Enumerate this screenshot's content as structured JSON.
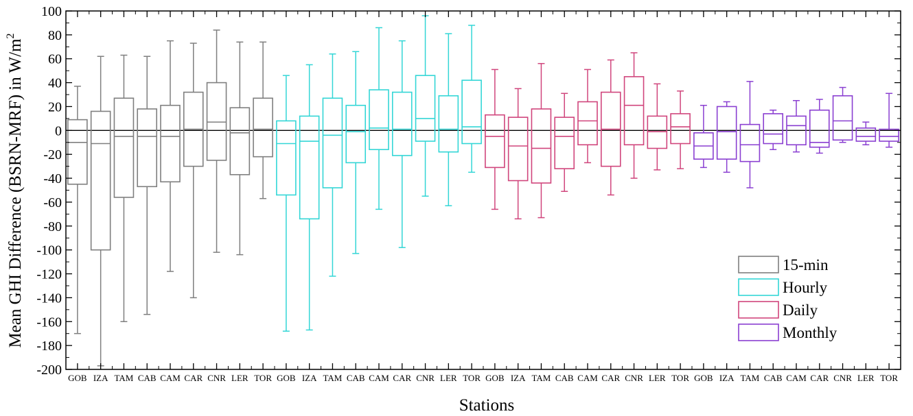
{
  "chart_data": {
    "type": "box",
    "xlabel": "Stations",
    "ylabel": "Mean GHI Difference (BSRN-MRF) in W/m",
    "ylabel_superscript": "2",
    "ylim": [
      -200,
      100
    ],
    "yticks": [
      -200,
      -180,
      -160,
      -140,
      -120,
      -100,
      -80,
      -60,
      -40,
      -20,
      0,
      20,
      40,
      60,
      80,
      100
    ],
    "reference_line": 0,
    "legend_position": "bottom-right",
    "stations": [
      "GOB",
      "IZA",
      "TAM",
      "CAB",
      "CAM",
      "CAR",
      "CNR",
      "LER",
      "TOR"
    ],
    "series": [
      {
        "name": "15-min",
        "color": "#7f7f7f",
        "boxes": [
          {
            "station": "GOB",
            "min": -170,
            "q1": -45,
            "median": -10,
            "q3": 9,
            "max": 37
          },
          {
            "station": "IZA",
            "min": -197,
            "q1": -100,
            "median": -11,
            "q3": 16,
            "max": 62
          },
          {
            "station": "TAM",
            "min": -160,
            "q1": -56,
            "median": -5,
            "q3": 27,
            "max": 63
          },
          {
            "station": "CAB",
            "min": -154,
            "q1": -47,
            "median": -5,
            "q3": 18,
            "max": 62
          },
          {
            "station": "CAM",
            "min": -118,
            "q1": -43,
            "median": -5,
            "q3": 21,
            "max": 75
          },
          {
            "station": "CAR",
            "min": -140,
            "q1": -30,
            "median": 1,
            "q3": 32,
            "max": 73
          },
          {
            "station": "CNR",
            "min": -102,
            "q1": -25,
            "median": 7,
            "q3": 40,
            "max": 84
          },
          {
            "station": "LER",
            "min": -104,
            "q1": -37,
            "median": -2,
            "q3": 19,
            "max": 74
          },
          {
            "station": "TOR",
            "min": -57,
            "q1": -22,
            "median": 1,
            "q3": 27,
            "max": 74
          }
        ]
      },
      {
        "name": "Hourly",
        "color": "#33d6d6",
        "boxes": [
          {
            "station": "GOB",
            "min": -168,
            "q1": -54,
            "median": -11,
            "q3": 8,
            "max": 46
          },
          {
            "station": "IZA",
            "min": -167,
            "q1": -74,
            "median": -9,
            "q3": 12,
            "max": 55
          },
          {
            "station": "TAM",
            "min": -122,
            "q1": -48,
            "median": -4,
            "q3": 27,
            "max": 64
          },
          {
            "station": "CAB",
            "min": -103,
            "q1": -27,
            "median": -1,
            "q3": 21,
            "max": 66
          },
          {
            "station": "CAM",
            "min": -66,
            "q1": -16,
            "median": 2,
            "q3": 34,
            "max": 86
          },
          {
            "station": "CAR",
            "min": -98,
            "q1": -21,
            "median": 1,
            "q3": 32,
            "max": 75
          },
          {
            "station": "CNR",
            "min": -55,
            "q1": -9,
            "median": 10,
            "q3": 46,
            "max": 96
          },
          {
            "station": "LER",
            "min": -63,
            "q1": -18,
            "median": 1,
            "q3": 29,
            "max": 81
          },
          {
            "station": "TOR",
            "min": -35,
            "q1": -11,
            "median": 3,
            "q3": 42,
            "max": 88
          }
        ]
      },
      {
        "name": "Daily",
        "color": "#d0457c",
        "boxes": [
          {
            "station": "GOB",
            "min": -66,
            "q1": -31,
            "median": -5,
            "q3": 13,
            "max": 51
          },
          {
            "station": "IZA",
            "min": -74,
            "q1": -42,
            "median": -13,
            "q3": 11,
            "max": 35
          },
          {
            "station": "TAM",
            "min": -73,
            "q1": -44,
            "median": -15,
            "q3": 18,
            "max": 56
          },
          {
            "station": "CAB",
            "min": -51,
            "q1": -32,
            "median": -5,
            "q3": 11,
            "max": 31
          },
          {
            "station": "CAM",
            "min": -27,
            "q1": -12,
            "median": 8,
            "q3": 24,
            "max": 51
          },
          {
            "station": "CAR",
            "min": -54,
            "q1": -30,
            "median": 1,
            "q3": 32,
            "max": 59
          },
          {
            "station": "CNR",
            "min": -40,
            "q1": -12,
            "median": 21,
            "q3": 45,
            "max": 65
          },
          {
            "station": "LER",
            "min": -33,
            "q1": -15,
            "median": -1,
            "q3": 12,
            "max": 39
          },
          {
            "station": "TOR",
            "min": -32,
            "q1": -11,
            "median": 3,
            "q3": 14,
            "max": 33
          }
        ]
      },
      {
        "name": "Monthly",
        "color": "#8a3fd1",
        "boxes": [
          {
            "station": "GOB",
            "min": -31,
            "q1": -24,
            "median": -13,
            "q3": -2,
            "max": 21
          },
          {
            "station": "IZA",
            "min": -35,
            "q1": -24,
            "median": -1,
            "q3": 20,
            "max": 24
          },
          {
            "station": "TAM",
            "min": -48,
            "q1": -26,
            "median": -12,
            "q3": 5,
            "max": 41
          },
          {
            "station": "CAB",
            "min": -16,
            "q1": -11,
            "median": -3,
            "q3": 14,
            "max": 17
          },
          {
            "station": "CAM",
            "min": -18,
            "q1": -12,
            "median": 4,
            "q3": 12,
            "max": 25
          },
          {
            "station": "CAR",
            "min": -19,
            "q1": -14,
            "median": -10,
            "q3": 17,
            "max": 26
          },
          {
            "station": "CNR",
            "min": -10,
            "q1": -8,
            "median": 8,
            "q3": 29,
            "max": 36
          },
          {
            "station": "LER",
            "min": -12,
            "q1": -9,
            "median": -5,
            "q3": 2,
            "max": 7
          },
          {
            "station": "TOR",
            "min": -14,
            "q1": -9,
            "median": -5,
            "q3": 1,
            "max": 31
          }
        ]
      }
    ]
  }
}
